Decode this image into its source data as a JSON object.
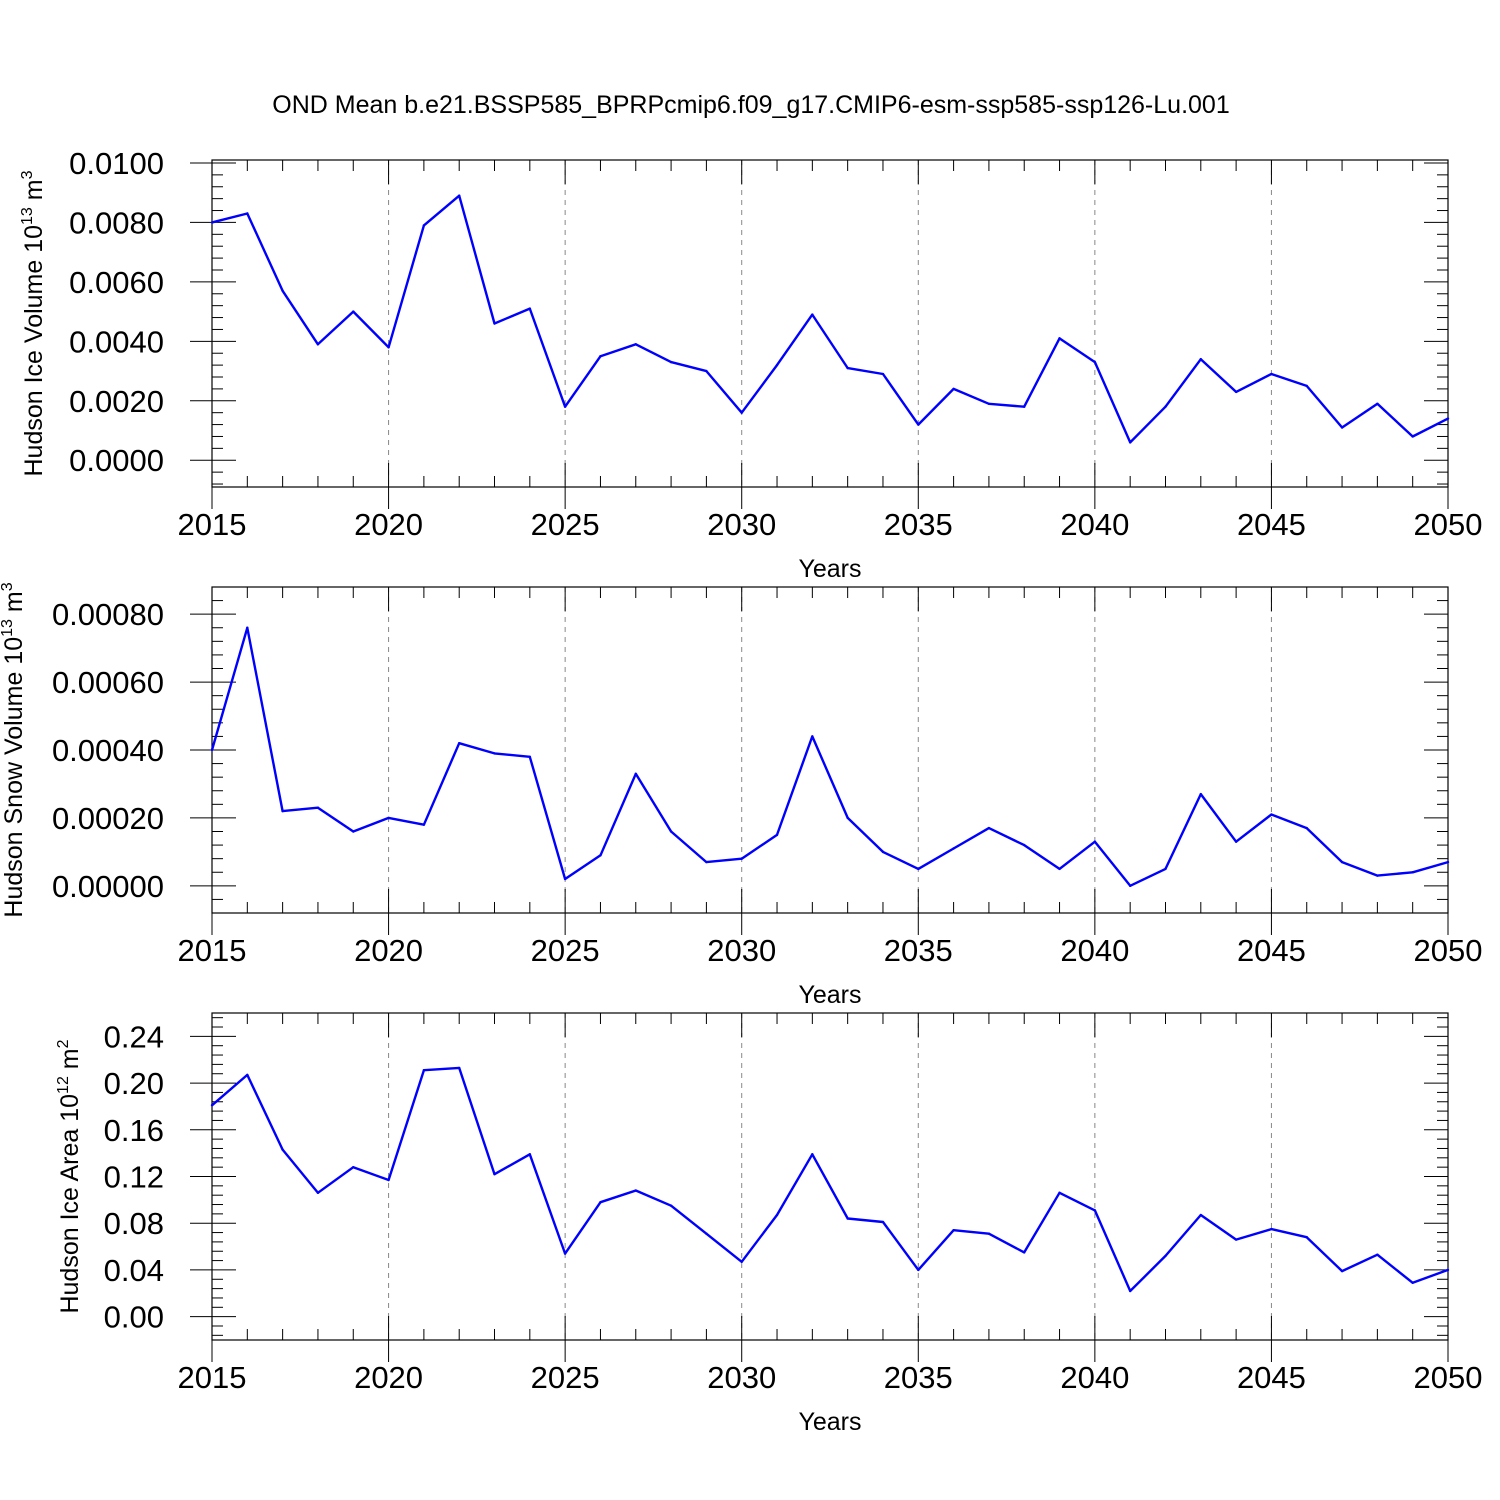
{
  "title": "OND Mean b.e21.BSSP585_BPRPcmip6.f09_g17.CMIP6-esm-ssp585-ssp126-Lu.001",
  "colors": {
    "series": "#0000ff",
    "grid": "#888888",
    "axis": "#000000"
  },
  "chart_data": [
    {
      "type": "line",
      "title": "",
      "xlabel": "Years",
      "ylabel": "Hudson Ice Volume 10",
      "ylabel_exp": "13",
      "ylabel_unit": "m",
      "ylabel_unit_exp": "3",
      "xlim": [
        2015,
        2050
      ],
      "ylim": [
        -0.0009,
        0.0101
      ],
      "grid": true,
      "x_ticks": [
        "2015",
        "2020",
        "2025",
        "2030",
        "2035",
        "2040",
        "2045",
        "2050"
      ],
      "y_ticks": [
        "0.0000",
        "0.0020",
        "0.0040",
        "0.0060",
        "0.0080",
        "0.0100"
      ],
      "series": [
        {
          "x": [
            2015,
            2016,
            2017,
            2018,
            2019,
            2020,
            2021,
            2022,
            2023,
            2024,
            2025,
            2026,
            2027,
            2028,
            2029,
            2030,
            2031,
            2032,
            2033,
            2034,
            2035,
            2036,
            2037,
            2038,
            2039,
            2040,
            2041,
            2042,
            2043,
            2044,
            2045,
            2046,
            2047,
            2048,
            2049,
            2050
          ],
          "values": [
            0.008,
            0.0083,
            0.0057,
            0.0039,
            0.005,
            0.0038,
            0.0079,
            0.0089,
            0.0046,
            0.0051,
            0.0018,
            0.0035,
            0.0039,
            0.0033,
            0.003,
            0.0016,
            0.0032,
            0.0049,
            0.0031,
            0.0029,
            0.0012,
            0.0024,
            0.0019,
            0.0018,
            0.0041,
            0.0033,
            0.0006,
            0.0018,
            0.0034,
            0.0023,
            0.0029,
            0.0025,
            0.0011,
            0.0019,
            0.0008,
            0.0014
          ]
        }
      ]
    },
    {
      "type": "line",
      "title": "",
      "xlabel": "Years",
      "ylabel": "Hudson Snow Volume 10",
      "ylabel_exp": "13",
      "ylabel_unit": "m",
      "ylabel_unit_exp": "3",
      "xlim": [
        2015,
        2050
      ],
      "ylim": [
        -8e-05,
        0.00088
      ],
      "grid": true,
      "x_ticks": [
        "2015",
        "2020",
        "2025",
        "2030",
        "2035",
        "2040",
        "2045",
        "2050"
      ],
      "y_ticks": [
        "0.00000",
        "0.00020",
        "0.00040",
        "0.00060",
        "0.00080"
      ],
      "series": [
        {
          "x": [
            2015,
            2016,
            2017,
            2018,
            2019,
            2020,
            2021,
            2022,
            2023,
            2024,
            2025,
            2026,
            2027,
            2028,
            2029,
            2030,
            2031,
            2032,
            2033,
            2034,
            2035,
            2036,
            2037,
            2038,
            2039,
            2040,
            2041,
            2042,
            2043,
            2044,
            2045,
            2046,
            2047,
            2048,
            2049,
            2050
          ],
          "values": [
            0.0004,
            0.00076,
            0.00022,
            0.00023,
            0.00016,
            0.0002,
            0.00018,
            0.00042,
            0.00039,
            0.00038,
            2e-05,
            9e-05,
            0.00033,
            0.00016,
            7e-05,
            8e-05,
            0.00015,
            0.00044,
            0.0002,
            0.0001,
            5e-05,
            0.00011,
            0.00017,
            0.00012,
            5e-05,
            0.00013,
            0.0,
            5e-05,
            0.00027,
            0.00013,
            0.00021,
            0.00017,
            7e-05,
            3e-05,
            4e-05,
            7e-05
          ]
        }
      ]
    },
    {
      "type": "line",
      "title": "",
      "xlabel": "Years",
      "ylabel": "Hudson Ice Area 10",
      "ylabel_exp": "12",
      "ylabel_unit": "m",
      "ylabel_unit_exp": "2",
      "xlim": [
        2015,
        2050
      ],
      "ylim": [
        -0.02,
        0.26
      ],
      "grid": true,
      "x_ticks": [
        "2015",
        "2020",
        "2025",
        "2030",
        "2035",
        "2040",
        "2045",
        "2050"
      ],
      "y_ticks": [
        "0.00",
        "0.04",
        "0.08",
        "0.12",
        "0.16",
        "0.20",
        "0.24"
      ],
      "series": [
        {
          "x": [
            2015,
            2016,
            2017,
            2018,
            2019,
            2020,
            2021,
            2022,
            2023,
            2024,
            2025,
            2026,
            2027,
            2028,
            2029,
            2030,
            2031,
            2032,
            2033,
            2034,
            2035,
            2036,
            2037,
            2038,
            2039,
            2040,
            2041,
            2042,
            2043,
            2044,
            2045,
            2046,
            2047,
            2048,
            2049,
            2050
          ],
          "values": [
            0.181,
            0.207,
            0.143,
            0.106,
            0.128,
            0.117,
            0.211,
            0.213,
            0.122,
            0.139,
            0.054,
            0.098,
            0.108,
            0.095,
            0.071,
            0.047,
            0.087,
            0.139,
            0.084,
            0.081,
            0.04,
            0.074,
            0.071,
            0.055,
            0.106,
            0.091,
            0.022,
            0.052,
            0.087,
            0.066,
            0.075,
            0.068,
            0.039,
            0.053,
            0.029,
            0.04
          ]
        }
      ]
    }
  ]
}
